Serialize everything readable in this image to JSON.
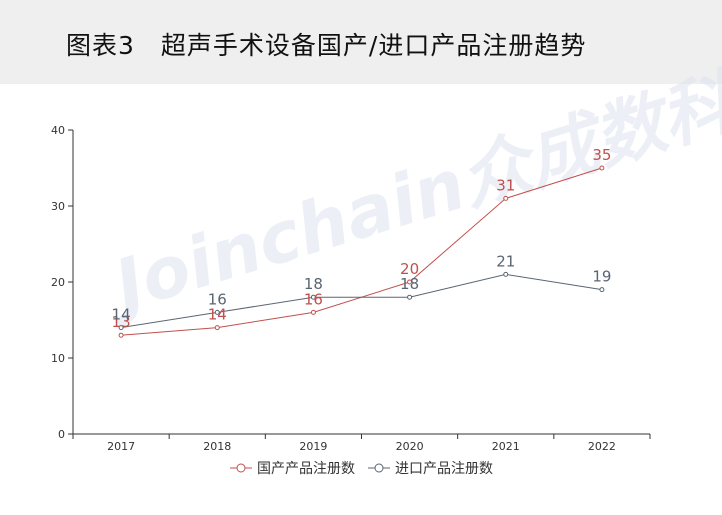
{
  "title": "图表3　超声手术设备国产/进口产品注册趋势",
  "watermark": "Joinchain众成数科",
  "chart_data": {
    "type": "line",
    "categories": [
      "2017",
      "2018",
      "2019",
      "2020",
      "2021",
      "2022"
    ],
    "series": [
      {
        "name": "国产产品注册数",
        "color": "#c0504d",
        "values": [
          13,
          14,
          16,
          20,
          31,
          35
        ]
      },
      {
        "name": "进口产品注册数",
        "color": "#5a6572",
        "values": [
          14,
          16,
          18,
          18,
          21,
          19
        ]
      }
    ],
    "ylim": [
      0,
      40
    ],
    "yticks": [
      0,
      10,
      20,
      30,
      40
    ],
    "grid": false,
    "legend": "bottom-center"
  }
}
